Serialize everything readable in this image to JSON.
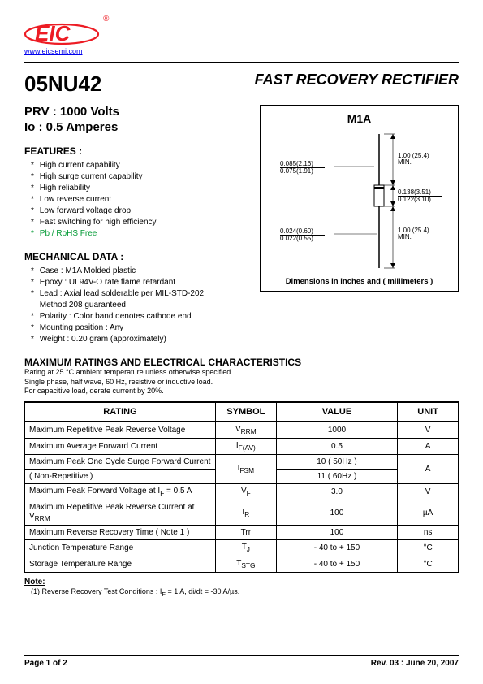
{
  "header": {
    "url": "www.eicsemi.com",
    "logo_color": "#ed1c24",
    "reg_symbol": "®"
  },
  "part_number": "05NU42",
  "title": "FAST RECOVERY RECTIFIER",
  "specs": {
    "prv": "PRV : 1000 Volts",
    "io": "Io : 0.5 Amperes"
  },
  "features": {
    "heading": "FEATURES :",
    "items": [
      "High current capability",
      "High surge current capability",
      "High reliability",
      "Low reverse current",
      "Low forward voltage drop",
      "Fast switching for high efficiency",
      "Pb / RoHS Free"
    ],
    "green_index": 6
  },
  "mechanical": {
    "heading": "MECHANICAL  DATA :",
    "items": [
      "Case :  M1A  Molded plastic",
      "Epoxy : UL94V-O rate flame retardant",
      "Lead : Axial lead solderable per MIL-STD-202,",
      "             Method 208 guaranteed",
      "Polarity : Color band denotes cathode end",
      "Mounting  position : Any",
      "Weight :    0.20  gram (approximately)"
    ],
    "no_star_indices": [
      3
    ]
  },
  "diagram": {
    "title": "M1A",
    "caption": "Dimensions in inches and ( millimeters )",
    "dims": {
      "body_dia_top": "0.085(2.16)",
      "body_dia_bot": "0.075(1.91)",
      "lead_len_top": "1.00 (25.4)",
      "lead_len_bot": "MIN.",
      "body_len_top": "0.138(3.51)",
      "body_len_bot": "0.122(3.10)",
      "lead_dia_top": "0.024(0.60)",
      "lead_dia_bot": "0.022(0.55)",
      "lead_len2_top": "1.00 (25.4)",
      "lead_len2_bot": "MIN."
    }
  },
  "max_ratings": {
    "heading": "MAXIMUM RATINGS AND ELECTRICAL CHARACTERISTICS",
    "notes": [
      "Rating at  25 °C ambient temperature unless otherwise specified.",
      "Single phase, half wave, 60 Hz, resistive or inductive load.",
      "For capacitive load, derate current by 20%."
    ]
  },
  "table": {
    "columns": [
      "RATING",
      "SYMBOL",
      "VALUE",
      "UNIT"
    ],
    "col_widths": [
      "44%",
      "14%",
      "28%",
      "14%"
    ],
    "rows": [
      {
        "rating": "Maximum Repetitive Peak Reverse Voltage",
        "symbol": "V<sub>RRM</sub>",
        "value": "1000",
        "unit": "V"
      },
      {
        "rating": "Maximum Average Forward Current",
        "symbol": "I<sub>F(AV)</sub>",
        "value": "0.5",
        "unit": "A"
      },
      {
        "rating": "Maximum Peak One Cycle Surge Forward Current",
        "symbol": "I<sub>FSM</sub>",
        "value": "10 ( 50Hz )",
        "unit": "A",
        "rowspan": 2,
        "subrating": "  ( Non-Repetitive )",
        "subvalue": "11 ( 60Hz )"
      },
      {
        "rating": "Maximum Peak Forward Voltage at I<sub>F</sub> = 0.5 A",
        "symbol": "V<sub>F</sub>",
        "value": "3.0",
        "unit": "V"
      },
      {
        "rating": "Maximum Repetitive Peak Reverse Current  at V<sub>RRM</sub>",
        "symbol": "I<sub>R</sub>",
        "value": "100",
        "unit": "µA"
      },
      {
        "rating": "Maximum Reverse Recovery Time ( Note 1 )",
        "symbol": "Trr",
        "value": "100",
        "unit": "ns"
      },
      {
        "rating": "Junction Temperature Range",
        "symbol": "T<sub>J</sub>",
        "value": "- 40 to + 150",
        "unit": "°C"
      },
      {
        "rating": "Storage Temperature Range",
        "symbol": "T<sub>STG</sub>",
        "value": "- 40 to + 150",
        "unit": "°C"
      }
    ]
  },
  "notes": {
    "heading": "Note:",
    "body": "(1)  Reverse Recovery Test Conditions : I<sub>F</sub> = 1 A, di/dt = -30 A/µs."
  },
  "footer": {
    "page": "Page 1 of 2",
    "rev": "Rev. 03 : June 20, 2007"
  }
}
